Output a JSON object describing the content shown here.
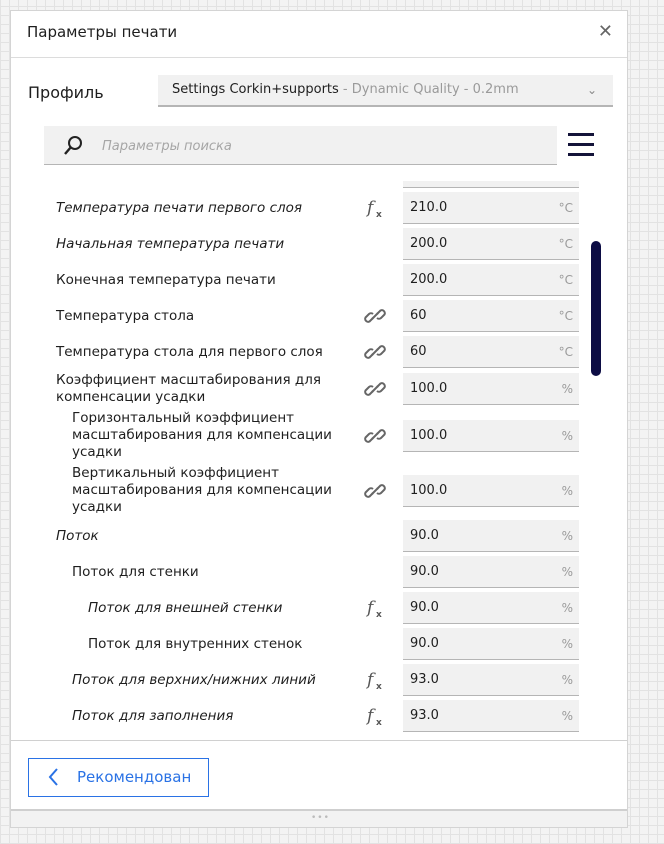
{
  "dialog": {
    "title": "Параметры печати",
    "close_icon": "close-icon"
  },
  "profile": {
    "label": "Профиль",
    "name": "Settings Corkin+supports",
    "detail": " - Dynamic Quality - 0.2mm"
  },
  "search": {
    "placeholder": "Параметры поиска"
  },
  "settings": [
    {
      "label": "Температура печати первого слоя",
      "italic": true,
      "indent": 0,
      "icon": "function-icon",
      "value": "210.0",
      "unit": "°C"
    },
    {
      "label": "Начальная температура печати",
      "italic": true,
      "indent": 0,
      "icon": "",
      "value": "200.0",
      "unit": "°C"
    },
    {
      "label": "Конечная температура печати",
      "italic": false,
      "indent": 0,
      "icon": "",
      "value": "200.0",
      "unit": "°C"
    },
    {
      "label": "Температура стола",
      "italic": false,
      "indent": 0,
      "icon": "link-icon",
      "value": "60",
      "unit": "°C"
    },
    {
      "label": "Температура стола для первого слоя",
      "italic": false,
      "indent": 0,
      "icon": "link-icon",
      "value": "60",
      "unit": "°C"
    },
    {
      "label": "Коэффициент масштабирования для компенсации усадки",
      "italic": false,
      "indent": 0,
      "icon": "link-icon",
      "value": "100.0",
      "unit": "%"
    },
    {
      "label": "Горизонтальный коэффициент масштабирования для компенсации усадки",
      "italic": false,
      "indent": 1,
      "icon": "link-icon",
      "value": "100.0",
      "unit": "%"
    },
    {
      "label": "Вертикальный коэффициент масштабирования для компенсации усадки",
      "italic": false,
      "indent": 1,
      "icon": "link-icon",
      "value": "100.0",
      "unit": "%"
    },
    {
      "label": "Поток",
      "italic": true,
      "indent": 0,
      "icon": "",
      "value": "90.0",
      "unit": "%"
    },
    {
      "label": "Поток для стенки",
      "italic": false,
      "indent": 1,
      "icon": "",
      "value": "90.0",
      "unit": "%"
    },
    {
      "label": "Поток для внешней стенки",
      "italic": true,
      "indent": 2,
      "icon": "function-icon",
      "value": "90.0",
      "unit": "%"
    },
    {
      "label": "Поток для внутренних стенок",
      "italic": false,
      "indent": 2,
      "icon": "",
      "value": "90.0",
      "unit": "%"
    },
    {
      "label": "Поток для верхних/нижних линий",
      "italic": true,
      "indent": 1,
      "icon": "function-icon",
      "value": "93.0",
      "unit": "%"
    },
    {
      "label": "Поток для заполнения",
      "italic": true,
      "indent": 1,
      "icon": "function-icon",
      "value": "93.0",
      "unit": "%"
    }
  ],
  "footer": {
    "back_label": "Рекомендован"
  },
  "colors": {
    "accent": "#2a72e5",
    "scrollbar": "#0c0c44"
  }
}
